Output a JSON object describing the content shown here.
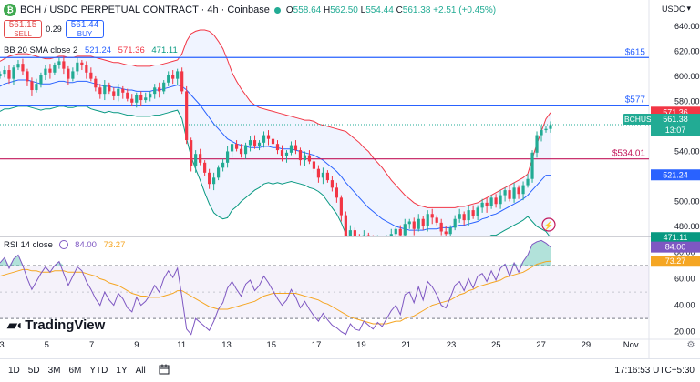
{
  "header": {
    "symbol": "BCH / USDC PERPETUAL CONTRACT · 4h · Coinbase",
    "symbol_icon": "bch-coin-icon",
    "open_label": "O",
    "open": "558.64",
    "high_label": "H",
    "high": "562.50",
    "low_label": "L",
    "low": "554.44",
    "close_label": "C",
    "close": "561.38",
    "change": "+2.51 (+0.45%)",
    "currency": "USDC",
    "currency_icon": "chevron-down-icon"
  },
  "trade": {
    "sell_price": "561.15",
    "sell_label": "SELL",
    "spread": "0.29",
    "buy_price": "561.44",
    "buy_label": "BUY"
  },
  "indicators": {
    "bb_name": "BB 20 SMA close 2",
    "bb_basis": "521.24",
    "bb_upper": "571.36",
    "bb_lower": "471.11",
    "rsi_name": "RSI 14 close",
    "rsi_value": "84.00",
    "rsi_ma": "73.27"
  },
  "branding": {
    "logo_text": "TradingView"
  },
  "bottom_bar": {
    "timeframes": [
      "1D",
      "5D",
      "3M",
      "6M",
      "YTD",
      "1Y",
      "All"
    ],
    "clock": "17:16:53 UTC+5:30"
  },
  "colors": {
    "up": "#22ab94",
    "down": "#f23645",
    "bb_basis": "#2962ff",
    "bb_upper": "#f23645",
    "bb_lower": "#089981",
    "rsi": "#7e57c2",
    "rsi_ma": "#f5a623",
    "hline_blue": "#2962ff",
    "hline_red": "#c2185b"
  },
  "chart_data": {
    "type": "candlestick",
    "interval": "4h",
    "x_tick_labels": [
      "3",
      "5",
      "7",
      "9",
      "11",
      "13",
      "15",
      "17",
      "19",
      "21",
      "23",
      "25",
      "27",
      "29",
      "Nov"
    ],
    "price_axis": {
      "ticks": [
        640,
        620,
        600,
        580,
        560,
        540,
        520,
        500,
        480
      ],
      "ylim": [
        472,
        645
      ]
    },
    "horizontal_lines": [
      {
        "label": "$615",
        "value": 615,
        "color": "blue"
      },
      {
        "label": "$577",
        "value": 577,
        "color": "blue"
      },
      {
        "label": "$534.01",
        "value": 534.01,
        "color": "red"
      }
    ],
    "price_labels": [
      {
        "text": "571.36",
        "value": 571.36,
        "kind": "bb_upper"
      },
      {
        "text": "BCHUSDC.P",
        "value": 561.38,
        "kind": "symbol"
      },
      {
        "text": "561.38",
        "value": 561.38,
        "kind": "last"
      },
      {
        "text": "13:07",
        "value": 561.38,
        "kind": "countdown"
      },
      {
        "text": "521.24",
        "value": 521.24,
        "kind": "bb_basis"
      },
      {
        "text": "471.11",
        "value": 471.11,
        "kind": "bb_lower"
      }
    ],
    "candles_close": [
      602,
      605,
      598,
      607,
      610,
      604,
      596,
      589,
      594,
      601,
      606,
      603,
      609,
      612,
      606,
      598,
      604,
      611,
      609,
      603,
      598,
      591,
      586,
      593,
      588,
      584,
      590,
      587,
      582,
      579,
      585,
      581,
      583,
      586,
      591,
      588,
      595,
      601,
      598,
      604,
      588,
      549,
      528,
      538,
      531,
      523,
      514,
      519,
      527,
      531,
      540,
      546,
      542,
      538,
      545,
      549,
      544,
      547,
      553,
      550,
      546,
      541,
      536,
      539,
      545,
      541,
      533,
      537,
      532,
      526,
      519,
      523,
      517,
      511,
      503,
      489,
      472,
      477,
      471,
      468,
      473,
      470,
      465,
      469,
      466,
      470,
      474,
      478,
      473,
      482,
      484,
      478,
      486,
      480,
      490,
      487,
      483,
      476,
      474,
      479,
      486,
      490,
      485,
      493,
      488,
      495,
      499,
      496,
      503,
      498,
      505,
      509,
      502,
      511,
      506,
      513,
      518,
      539,
      553,
      557,
      558,
      561
    ],
    "bb_basis": [
      592,
      594,
      595,
      596,
      597,
      597,
      597,
      596,
      595,
      594,
      594,
      594,
      595,
      596,
      596,
      595,
      595,
      596,
      596,
      596,
      595,
      594,
      593,
      592,
      592,
      591,
      591,
      590,
      589,
      589,
      588,
      588,
      588,
      588,
      589,
      589,
      590,
      591,
      592,
      593,
      592,
      589,
      585,
      581,
      577,
      572,
      567,
      562,
      558,
      554,
      550,
      548,
      546,
      545,
      544,
      543,
      543,
      543,
      544,
      544,
      543,
      543,
      542,
      542,
      542,
      541,
      540,
      539,
      538,
      537,
      535,
      533,
      530,
      527,
      524,
      520,
      515,
      511,
      507,
      503,
      499,
      495,
      492,
      489,
      486,
      484,
      482,
      480,
      479,
      478,
      477,
      477,
      477,
      477,
      478,
      478,
      478,
      479,
      479,
      479,
      480,
      481,
      481,
      482,
      483,
      484,
      486,
      487,
      489,
      490,
      492,
      494,
      496,
      498,
      500,
      502,
      505,
      509,
      513,
      517,
      521,
      521
    ],
    "bb_upper": [
      612,
      614,
      616,
      617,
      618,
      618,
      618,
      617,
      616,
      615,
      614,
      614,
      615,
      616,
      616,
      615,
      615,
      616,
      616,
      616,
      616,
      615,
      614,
      613,
      612,
      611,
      611,
      610,
      609,
      609,
      608,
      608,
      608,
      608,
      609,
      609,
      610,
      611,
      612,
      613,
      618,
      628,
      634,
      636,
      637,
      637,
      636,
      633,
      628,
      622,
      613,
      603,
      596,
      590,
      585,
      580,
      577,
      575,
      574,
      573,
      572,
      571,
      570,
      569,
      568,
      567,
      566,
      565,
      565,
      564,
      562,
      561,
      560,
      559,
      558,
      557,
      556,
      553,
      550,
      547,
      543,
      540,
      535,
      531,
      527,
      522,
      517,
      513,
      509,
      505,
      502,
      499,
      497,
      496,
      495,
      495,
      495,
      495,
      495,
      495,
      495,
      496,
      496,
      497,
      498,
      499,
      501,
      503,
      505,
      507,
      509,
      511,
      513,
      515,
      517,
      519,
      522,
      534,
      546,
      556,
      566,
      571
    ],
    "bb_lower": [
      572,
      574,
      574,
      575,
      576,
      576,
      576,
      575,
      574,
      573,
      574,
      574,
      575,
      576,
      576,
      575,
      575,
      576,
      576,
      576,
      574,
      573,
      572,
      571,
      572,
      571,
      571,
      570,
      569,
      569,
      568,
      568,
      568,
      568,
      569,
      569,
      570,
      571,
      572,
      573,
      566,
      550,
      536,
      526,
      517,
      507,
      498,
      491,
      488,
      486,
      487,
      493,
      496,
      500,
      503,
      506,
      509,
      511,
      514,
      515,
      514,
      515,
      514,
      515,
      516,
      515,
      514,
      513,
      511,
      510,
      508,
      505,
      500,
      495,
      490,
      483,
      474,
      469,
      464,
      459,
      455,
      450,
      449,
      447,
      445,
      446,
      447,
      447,
      449,
      451,
      452,
      455,
      457,
      458,
      461,
      461,
      461,
      463,
      463,
      463,
      465,
      466,
      466,
      467,
      468,
      469,
      471,
      471,
      473,
      473,
      475,
      477,
      479,
      481,
      483,
      485,
      488,
      484,
      480,
      478,
      476,
      471
    ],
    "rsi": {
      "ticks": [
        80,
        60,
        40,
        20
      ],
      "overbought": 70,
      "oversold": 30,
      "ylim": [
        15,
        92
      ],
      "values": [
        72,
        76,
        68,
        75,
        78,
        70,
        60,
        52,
        58,
        64,
        69,
        65,
        70,
        73,
        64,
        55,
        62,
        69,
        66,
        58,
        52,
        45,
        40,
        50,
        44,
        40,
        49,
        45,
        38,
        35,
        46,
        40,
        43,
        48,
        55,
        50,
        60,
        66,
        61,
        68,
        46,
        22,
        18,
        30,
        27,
        24,
        21,
        28,
        37,
        42,
        53,
        58,
        52,
        47,
        56,
        59,
        51,
        55,
        62,
        57,
        51,
        45,
        40,
        44,
        52,
        46,
        38,
        43,
        37,
        32,
        28,
        34,
        29,
        25,
        23,
        20,
        18,
        26,
        22,
        21,
        28,
        25,
        22,
        27,
        24,
        30,
        36,
        40,
        33,
        48,
        50,
        42,
        54,
        44,
        58,
        54,
        48,
        40,
        38,
        46,
        55,
        58,
        51,
        60,
        53,
        62,
        64,
        58,
        66,
        59,
        68,
        71,
        62,
        72,
        65,
        73,
        78,
        86,
        88,
        89,
        87,
        84
      ],
      "ma_values": [
        62,
        63,
        64,
        65,
        66,
        67,
        67,
        66,
        66,
        65,
        65,
        65,
        66,
        66,
        66,
        65,
        65,
        65,
        65,
        64,
        63,
        62,
        60,
        59,
        57,
        56,
        55,
        53,
        51,
        49,
        48,
        47,
        47,
        46,
        46,
        46,
        47,
        48,
        49,
        51,
        51,
        49,
        47,
        45,
        43,
        41,
        39,
        38,
        37,
        37,
        37,
        38,
        39,
        40,
        41,
        42,
        43,
        45,
        47,
        48,
        49,
        49,
        49,
        49,
        49,
        49,
        48,
        47,
        46,
        45,
        44,
        42,
        41,
        39,
        37,
        35,
        33,
        31,
        30,
        29,
        28,
        27,
        26,
        26,
        26,
        26,
        27,
        28,
        28,
        30,
        31,
        32,
        34,
        36,
        38,
        40,
        41,
        42,
        43,
        44,
        46,
        48,
        49,
        51,
        52,
        54,
        55,
        56,
        57,
        58,
        59,
        61,
        62,
        63,
        64,
        65,
        67,
        69,
        71,
        72,
        73,
        73.27
      ]
    }
  }
}
